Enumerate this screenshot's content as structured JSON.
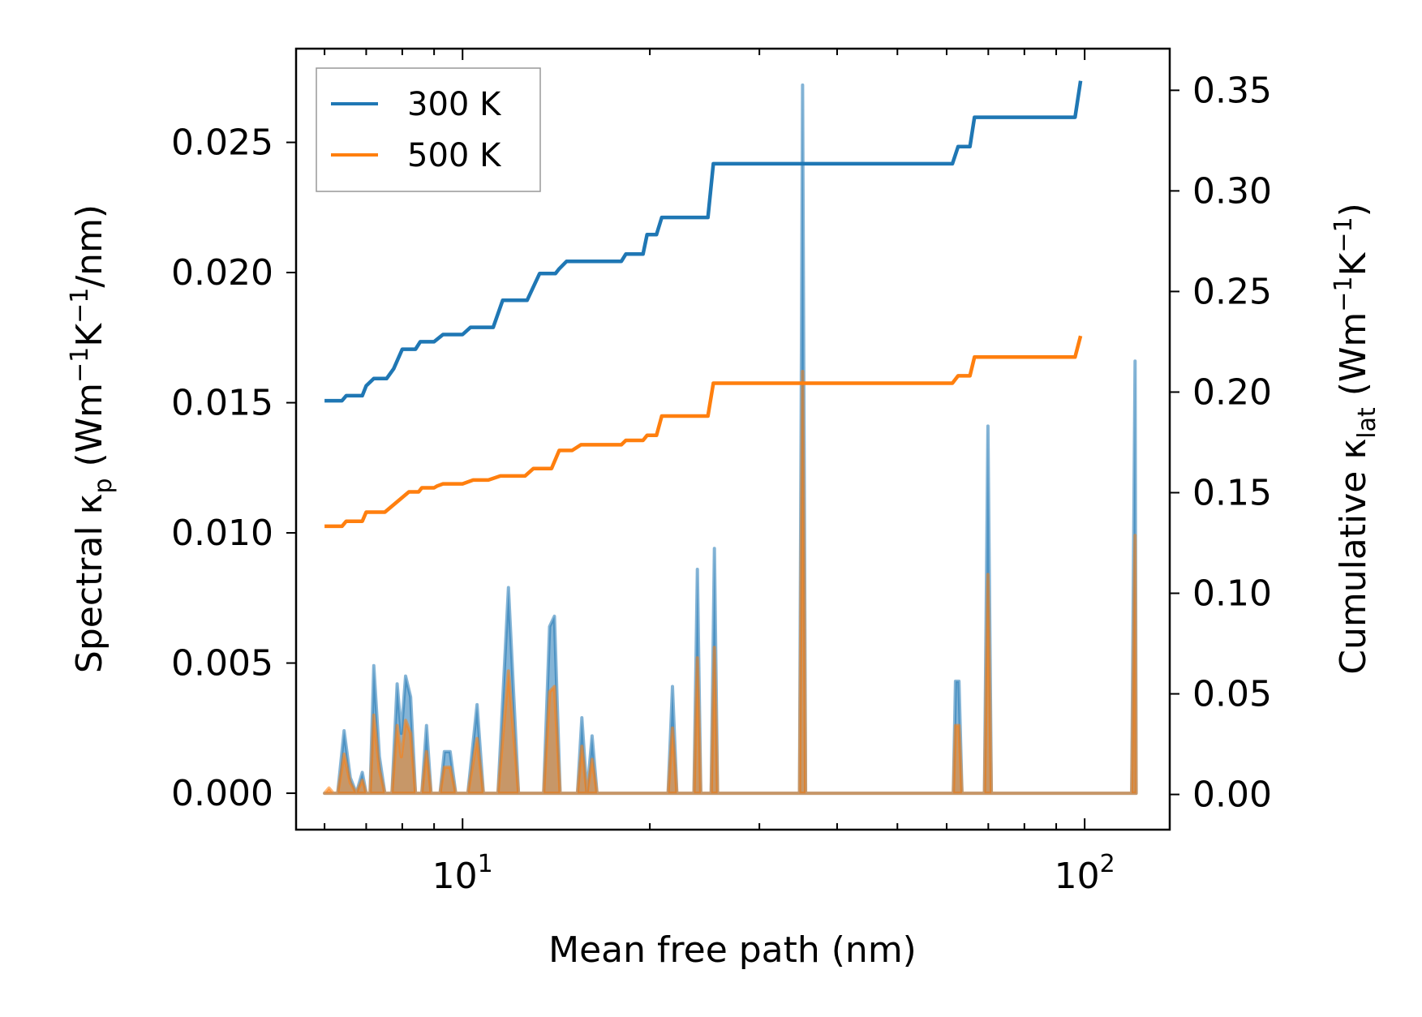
{
  "chart_data": {
    "type": "line",
    "xscale": "log",
    "xlabel": "Mean free path (nm)",
    "ylabel_left": {
      "prefix": "Spectral κ",
      "sub": "p",
      "unit_open": " (Wm",
      "exp1": "−1",
      "unit_mid": "K",
      "exp2": "−1",
      "unit_close": "/nm)"
    },
    "ylabel_right": {
      "prefix": "Cumulative κ",
      "sub": "lat",
      "unit_open": " (Wm",
      "exp1": "−1",
      "unit_mid": "K",
      "exp2": "−1",
      "unit_close": ")"
    },
    "xlim": [
      5.4,
      137
    ],
    "ylim_left": [
      -0.0014,
      0.0286
    ],
    "ylim_right": [
      -0.0175,
      0.3707
    ],
    "x_ticks": [
      {
        "value": 10,
        "base": "10",
        "exp": "1"
      },
      {
        "value": 100,
        "base": "10",
        "exp": "2"
      }
    ],
    "y_ticks_left": [
      {
        "value": 0.0,
        "label": "0.000"
      },
      {
        "value": 0.005,
        "label": "0.005"
      },
      {
        "value": 0.01,
        "label": "0.010"
      },
      {
        "value": 0.015,
        "label": "0.015"
      },
      {
        "value": 0.02,
        "label": "0.020"
      },
      {
        "value": 0.025,
        "label": "0.025"
      }
    ],
    "y_ticks_right": [
      {
        "value": 0.0,
        "label": "0.00"
      },
      {
        "value": 0.05,
        "label": "0.05"
      },
      {
        "value": 0.1,
        "label": "0.10"
      },
      {
        "value": 0.15,
        "label": "0.15"
      },
      {
        "value": 0.2,
        "label": "0.20"
      },
      {
        "value": 0.25,
        "label": "0.25"
      },
      {
        "value": 0.3,
        "label": "0.30"
      },
      {
        "value": 0.35,
        "label": "0.35"
      }
    ],
    "legend": {
      "location": "upper left",
      "entries": [
        {
          "label": "300 K",
          "color": "#1f77b4"
        },
        {
          "label": "500 K",
          "color": "#ff7f0e"
        }
      ]
    },
    "cumulative_series": [
      {
        "name": "300 K",
        "axis": "right",
        "color": "#1f77b4",
        "points": [
          [
            6.0,
            0.1957
          ],
          [
            6.4,
            0.1957
          ],
          [
            6.5,
            0.1982
          ],
          [
            6.9,
            0.1982
          ],
          [
            7.0,
            0.2031
          ],
          [
            7.2,
            0.2067
          ],
          [
            7.55,
            0.2067
          ],
          [
            7.75,
            0.2116
          ],
          [
            8.0,
            0.2213
          ],
          [
            8.4,
            0.2213
          ],
          [
            8.55,
            0.225
          ],
          [
            9.0,
            0.225
          ],
          [
            9.3,
            0.2286
          ],
          [
            10.0,
            0.2286
          ],
          [
            10.3,
            0.2322
          ],
          [
            11.2,
            0.2322
          ],
          [
            11.6,
            0.2456
          ],
          [
            12.7,
            0.2456
          ],
          [
            13.3,
            0.2589
          ],
          [
            14.1,
            0.2589
          ],
          [
            14.3,
            0.2613
          ],
          [
            14.7,
            0.265
          ],
          [
            18.0,
            0.265
          ],
          [
            18.3,
            0.2686
          ],
          [
            19.5,
            0.2686
          ],
          [
            19.8,
            0.2783
          ],
          [
            20.5,
            0.2783
          ],
          [
            20.9,
            0.2868
          ],
          [
            24.8,
            0.2868
          ],
          [
            25.3,
            0.3135
          ],
          [
            61.3,
            0.3135
          ],
          [
            62.6,
            0.322
          ],
          [
            65.4,
            0.322
          ],
          [
            66.5,
            0.3366
          ],
          [
            96.5,
            0.3366
          ],
          [
            98.5,
            0.3547
          ]
        ]
      },
      {
        "name": "500 K",
        "axis": "right",
        "color": "#ff7f0e",
        "points": [
          [
            6.0,
            0.1333
          ],
          [
            6.4,
            0.1333
          ],
          [
            6.5,
            0.1358
          ],
          [
            6.9,
            0.1358
          ],
          [
            7.0,
            0.1403
          ],
          [
            7.2,
            0.1403
          ],
          [
            7.5,
            0.1403
          ],
          [
            8.2,
            0.1504
          ],
          [
            8.5,
            0.1504
          ],
          [
            8.6,
            0.1524
          ],
          [
            9.0,
            0.1524
          ],
          [
            9.1,
            0.1533
          ],
          [
            9.3,
            0.1544
          ],
          [
            10.0,
            0.1544
          ],
          [
            10.4,
            0.1563
          ],
          [
            11.0,
            0.1563
          ],
          [
            11.5,
            0.1583
          ],
          [
            12.6,
            0.1583
          ],
          [
            13.0,
            0.162
          ],
          [
            13.9,
            0.162
          ],
          [
            14.3,
            0.171
          ],
          [
            15.0,
            0.171
          ],
          [
            15.5,
            0.1738
          ],
          [
            18.0,
            0.1738
          ],
          [
            18.3,
            0.176
          ],
          [
            19.5,
            0.176
          ],
          [
            19.8,
            0.1785
          ],
          [
            20.5,
            0.1785
          ],
          [
            20.9,
            0.1881
          ],
          [
            24.8,
            0.1881
          ],
          [
            25.3,
            0.2044
          ],
          [
            61.3,
            0.2044
          ],
          [
            62.6,
            0.2081
          ],
          [
            65.4,
            0.2081
          ],
          [
            66.5,
            0.2174
          ],
          [
            96.5,
            0.2174
          ],
          [
            98.5,
            0.2279
          ]
        ]
      }
    ],
    "spectral_series": [
      {
        "name": "300 K spectral",
        "axis": "left",
        "color": "#1f77b4",
        "points": [
          [
            6.0,
            0.0
          ],
          [
            6.1,
            0.0
          ],
          [
            6.2,
            0.0
          ],
          [
            6.3,
            0.0
          ],
          [
            6.45,
            0.0024
          ],
          [
            6.6,
            0.0006
          ],
          [
            6.75,
            0.0
          ],
          [
            6.9,
            0.0008
          ],
          [
            7.0,
            0.0
          ],
          [
            7.1,
            0.0
          ],
          [
            7.2,
            0.0049
          ],
          [
            7.35,
            0.0014
          ],
          [
            7.5,
            0.0
          ],
          [
            7.7,
            0.0
          ],
          [
            7.85,
            0.0042
          ],
          [
            7.97,
            0.0023
          ],
          [
            8.1,
            0.0045
          ],
          [
            8.25,
            0.0037
          ],
          [
            8.4,
            0.0
          ],
          [
            8.6,
            0.0
          ],
          [
            8.75,
            0.0026
          ],
          [
            8.9,
            0.0
          ],
          [
            9.2,
            0.0
          ],
          [
            9.35,
            0.0016
          ],
          [
            9.55,
            0.0016
          ],
          [
            9.75,
            0.0
          ],
          [
            10.2,
            0.0
          ],
          [
            10.55,
            0.0034
          ],
          [
            10.8,
            0.0
          ],
          [
            11.4,
            0.0
          ],
          [
            11.85,
            0.0079
          ],
          [
            12.3,
            0.0
          ],
          [
            13.5,
            0.0
          ],
          [
            13.8,
            0.0064
          ],
          [
            14.05,
            0.0068
          ],
          [
            14.35,
            0.0
          ],
          [
            15.3,
            0.0
          ],
          [
            15.55,
            0.0029
          ],
          [
            15.85,
            0.0
          ],
          [
            16.15,
            0.0022
          ],
          [
            16.45,
            0.0
          ],
          [
            21.4,
            0.0
          ],
          [
            21.75,
            0.0041
          ],
          [
            22.1,
            0.0
          ],
          [
            23.55,
            0.0
          ],
          [
            23.85,
            0.0086
          ],
          [
            24.15,
            0.0
          ],
          [
            25.1,
            0.0
          ],
          [
            25.4,
            0.0094
          ],
          [
            25.7,
            0.0
          ],
          [
            34.8,
            0.0
          ],
          [
            35.2,
            0.0272
          ],
          [
            35.6,
            0.0
          ],
          [
            36.0,
            0.0
          ],
          [
            61.5,
            0.0
          ],
          [
            62.0,
            0.0043
          ],
          [
            62.8,
            0.0043
          ],
          [
            63.5,
            0.0
          ],
          [
            69.0,
            0.0
          ],
          [
            69.9,
            0.0141
          ],
          [
            70.8,
            0.0
          ],
          [
            71.5,
            0.0
          ],
          [
            119.0,
            0.0
          ],
          [
            120.5,
            0.0166
          ],
          [
            121.0,
            0.0
          ]
        ]
      },
      {
        "name": "500 K spectral",
        "axis": "left",
        "color": "#ff7f0e",
        "points": [
          [
            6.0,
            0.0
          ],
          [
            6.1,
            0.0002
          ],
          [
            6.2,
            0.0
          ],
          [
            6.3,
            0.0
          ],
          [
            6.45,
            0.0015
          ],
          [
            6.6,
            0.0004
          ],
          [
            6.75,
            0.0
          ],
          [
            6.9,
            0.0005
          ],
          [
            7.0,
            0.0
          ],
          [
            7.1,
            0.0
          ],
          [
            7.2,
            0.003
          ],
          [
            7.35,
            0.0009
          ],
          [
            7.5,
            0.0
          ],
          [
            7.7,
            0.0
          ],
          [
            7.85,
            0.0026
          ],
          [
            7.97,
            0.0014
          ],
          [
            8.1,
            0.0028
          ],
          [
            8.25,
            0.0023
          ],
          [
            8.4,
            0.0
          ],
          [
            8.6,
            0.0
          ],
          [
            8.75,
            0.0016
          ],
          [
            8.9,
            0.0
          ],
          [
            9.2,
            0.0
          ],
          [
            9.35,
            0.001
          ],
          [
            9.55,
            0.001
          ],
          [
            9.75,
            0.0
          ],
          [
            10.2,
            0.0
          ],
          [
            10.55,
            0.0021
          ],
          [
            10.8,
            0.0
          ],
          [
            11.4,
            0.0
          ],
          [
            11.85,
            0.0047
          ],
          [
            12.3,
            0.0
          ],
          [
            13.5,
            0.0
          ],
          [
            13.8,
            0.0039
          ],
          [
            14.05,
            0.0041
          ],
          [
            14.35,
            0.0
          ],
          [
            15.3,
            0.0
          ],
          [
            15.55,
            0.0018
          ],
          [
            15.85,
            0.0
          ],
          [
            16.15,
            0.0013
          ],
          [
            16.45,
            0.0
          ],
          [
            21.4,
            0.0
          ],
          [
            21.75,
            0.0025
          ],
          [
            22.1,
            0.0
          ],
          [
            23.55,
            0.0
          ],
          [
            23.85,
            0.0052
          ],
          [
            24.15,
            0.0
          ],
          [
            25.1,
            0.0
          ],
          [
            25.4,
            0.0056
          ],
          [
            25.7,
            0.0
          ],
          [
            34.8,
            0.0
          ],
          [
            35.2,
            0.0162
          ],
          [
            35.6,
            0.0
          ],
          [
            36.0,
            0.0
          ],
          [
            61.5,
            0.0
          ],
          [
            62.0,
            0.0026
          ],
          [
            62.8,
            0.0026
          ],
          [
            63.5,
            0.0
          ],
          [
            69.0,
            0.0
          ],
          [
            69.9,
            0.0084
          ],
          [
            70.8,
            0.0
          ],
          [
            71.5,
            0.0
          ],
          [
            119.0,
            0.0
          ],
          [
            120.5,
            0.0099
          ],
          [
            121.0,
            0.0
          ]
        ]
      }
    ]
  }
}
